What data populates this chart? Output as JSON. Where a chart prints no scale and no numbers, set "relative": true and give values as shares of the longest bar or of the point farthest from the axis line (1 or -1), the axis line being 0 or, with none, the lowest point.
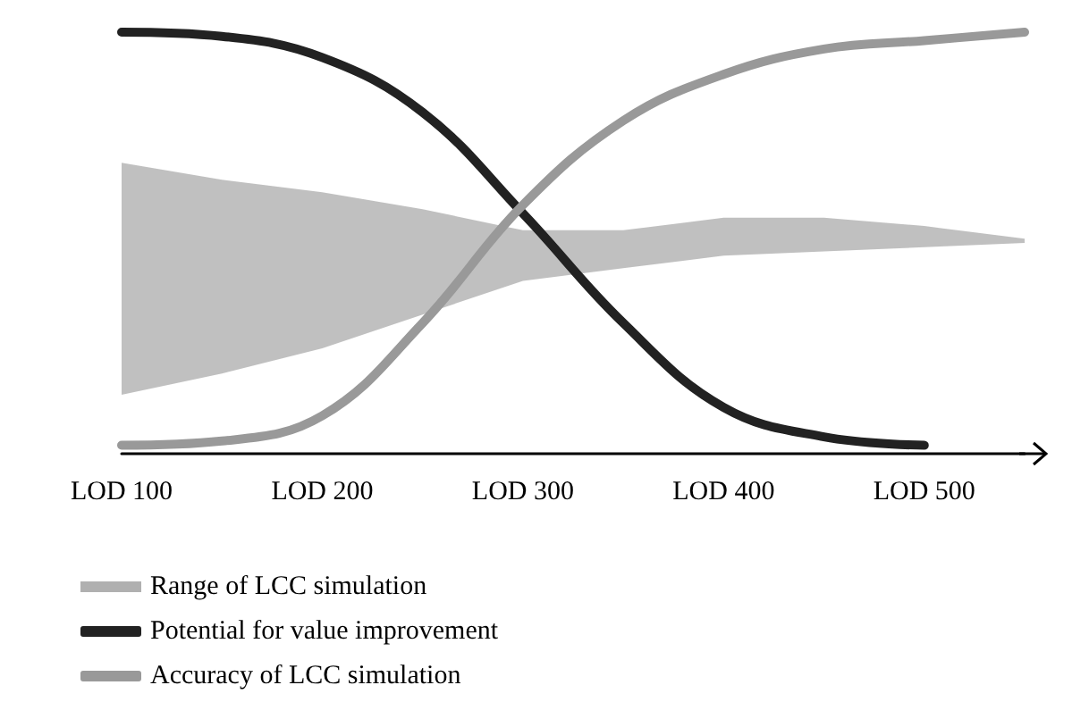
{
  "chart_data": {
    "type": "line",
    "relative": true,
    "categories": [
      "LOD 100",
      null,
      "LOD 200",
      null,
      "LOD 300",
      null,
      "LOD 400",
      null,
      "LOD 500",
      null
    ],
    "series": [
      {
        "name": "Range of LCC simulation",
        "type": "area",
        "color": "#b0b0b0",
        "values": [
          null,
          null,
          null,
          null,
          null,
          null,
          null,
          null,
          null,
          null
        ],
        "upper": [
          0.69,
          0.65,
          0.62,
          0.58,
          0.53,
          0.53,
          0.56,
          0.56,
          0.54,
          0.51
        ],
        "lower": [
          0.14,
          0.19,
          0.25,
          0.33,
          0.41,
          0.44,
          0.47,
          0.48,
          0.49,
          0.5
        ]
      },
      {
        "name": "Potential for value improvement",
        "color": "#222222",
        "values": [
          1.0,
          0.99,
          0.94,
          0.81,
          0.57,
          0.31,
          0.11,
          0.04,
          0.02,
          null
        ]
      },
      {
        "name": "Accuracy of LCC simulation",
        "color": "#999999",
        "values": [
          0.02,
          0.03,
          0.09,
          0.31,
          0.59,
          0.79,
          0.9,
          0.96,
          0.98,
          1.0
        ]
      }
    ],
    "grid": false,
    "legend": "bottom left",
    "marker": "none",
    "line_style": "solid"
  }
}
